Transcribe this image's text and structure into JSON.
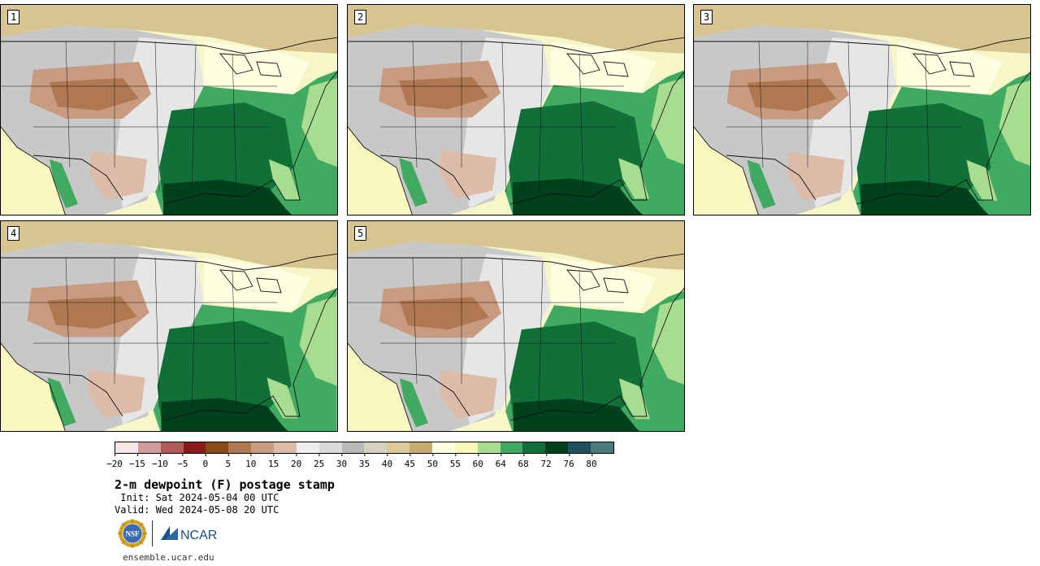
{
  "panels": [
    {
      "label": "1"
    },
    {
      "label": "2"
    },
    {
      "label": "3"
    },
    {
      "label": "4"
    },
    {
      "label": "5"
    }
  ],
  "colorbar": {
    "ticks": [
      "−20",
      "−15",
      "−10",
      "−5",
      "0",
      "5",
      "10",
      "15",
      "20",
      "25",
      "30",
      "35",
      "40",
      "45",
      "50",
      "55",
      "60",
      "64",
      "68",
      "72",
      "76",
      "80"
    ],
    "colors": [
      "#f4e6e6",
      "#d29a9a",
      "#b05a5a",
      "#8b1a1a",
      "#8b4a1a",
      "#b07850",
      "#c89a80",
      "#dcbca8",
      "#eeeeee",
      "#dadada",
      "#b8b8b8",
      "#d6d0c0",
      "#dcc898",
      "#c8aa70",
      "#fefee0",
      "#f8f8b8",
      "#a8dc90",
      "#40aa60",
      "#107038",
      "#00401c",
      "#1e5060",
      "#4a7a7a"
    ]
  },
  "title": "2-m dewpoint (F) postage stamp",
  "init": " Init: Sat 2024-05-04 00 UTC",
  "valid": "Valid: Wed 2024-05-08 20 UTC",
  "logos": {
    "nsf": "NSF",
    "ncar": "NCAR"
  },
  "footer": "ensemble.ucar.edu"
}
